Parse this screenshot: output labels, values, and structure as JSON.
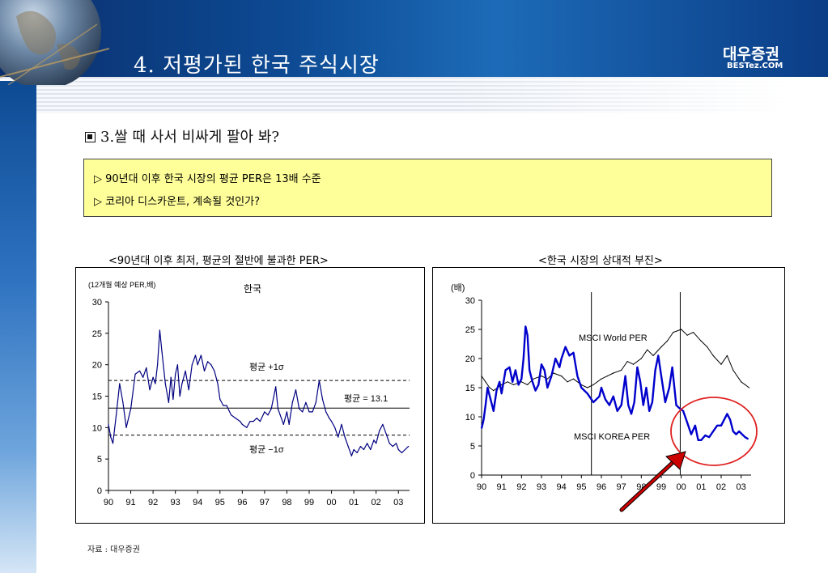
{
  "header": {
    "title": "4. 저평가된 한국 주식시장",
    "logo_main": "대우증권",
    "logo_sub": "BESTez.COM"
  },
  "section": {
    "heading": "3.쌀 때 사서 비싸게 팔아 봐?"
  },
  "notes": [
    "▷ 90년대 이후 한국 시장의 평균 PER은 13배 수준",
    "▷ 코리아 디스카운트, 계속될 것인가?"
  ],
  "colors": {
    "banner": "#0d4a93",
    "note_bg": "#ffff99",
    "korea_line": "#0000cc",
    "world_line": "#000000",
    "highlight_circle": "#e02020",
    "arrow": "#cc0000"
  },
  "chart_data": [
    {
      "type": "line",
      "caption": "<90년대 이후 최저, 평균의 절반에 불과한 PER>",
      "title": "한국",
      "ylabel": "(12개월 예상 PER,배)",
      "ylim": [
        0,
        30
      ],
      "yticks": [
        "0",
        "5",
        "10",
        "15",
        "20",
        "25",
        "30"
      ],
      "xticks": [
        "90",
        "91",
        "92",
        "93",
        "94",
        "95",
        "96",
        "97",
        "98",
        "99",
        "00",
        "01",
        "02",
        "03"
      ],
      "xlim": [
        1990,
        2003.5
      ],
      "reference_lines": [
        {
          "label": "평균 +1σ",
          "value": 17.5,
          "style": "dashed"
        },
        {
          "label": "평균 = 13.1",
          "value": 13.1,
          "style": "solid"
        },
        {
          "label": "평균 −1σ",
          "value": 8.8,
          "style": "dashed"
        }
      ],
      "series": [
        {
          "color": "#000080",
          "points": [
            [
              1990.0,
              10.5
            ],
            [
              1990.1,
              8.5
            ],
            [
              1990.2,
              7.5
            ],
            [
              1990.35,
              12.0
            ],
            [
              1990.5,
              17.0
            ],
            [
              1990.65,
              14.0
            ],
            [
              1990.8,
              10.0
            ],
            [
              1991.0,
              13.0
            ],
            [
              1991.2,
              18.5
            ],
            [
              1991.4,
              19.0
            ],
            [
              1991.55,
              18.0
            ],
            [
              1991.7,
              19.5
            ],
            [
              1991.85,
              16.0
            ],
            [
              1992.0,
              18.0
            ],
            [
              1992.1,
              17.0
            ],
            [
              1992.2,
              20.0
            ],
            [
              1992.3,
              25.5
            ],
            [
              1992.4,
              22.0
            ],
            [
              1992.55,
              17.0
            ],
            [
              1992.7,
              14.0
            ],
            [
              1992.8,
              18.0
            ],
            [
              1992.9,
              14.5
            ],
            [
              1993.0,
              18.5
            ],
            [
              1993.1,
              20.0
            ],
            [
              1993.2,
              15.0
            ],
            [
              1993.3,
              17.0
            ],
            [
              1993.45,
              19.0
            ],
            [
              1993.6,
              16.0
            ],
            [
              1993.75,
              20.0
            ],
            [
              1993.9,
              21.5
            ],
            [
              1994.0,
              20.0
            ],
            [
              1994.15,
              21.5
            ],
            [
              1994.3,
              19.0
            ],
            [
              1994.45,
              20.5
            ],
            [
              1994.6,
              20.0
            ],
            [
              1994.75,
              19.0
            ],
            [
              1994.9,
              17.0
            ],
            [
              1995.0,
              14.5
            ],
            [
              1995.15,
              13.5
            ],
            [
              1995.3,
              13.5
            ],
            [
              1995.5,
              12.0
            ],
            [
              1995.7,
              11.5
            ],
            [
              1995.9,
              11.0
            ],
            [
              1996.0,
              10.5
            ],
            [
              1996.2,
              10.0
            ],
            [
              1996.35,
              11.0
            ],
            [
              1996.5,
              11.0
            ],
            [
              1996.65,
              11.5
            ],
            [
              1996.8,
              11.0
            ],
            [
              1997.0,
              12.5
            ],
            [
              1997.15,
              12.0
            ],
            [
              1997.3,
              13.0
            ],
            [
              1997.5,
              16.5
            ],
            [
              1997.6,
              13.0
            ],
            [
              1997.7,
              12.0
            ],
            [
              1997.85,
              10.5
            ],
            [
              1998.0,
              12.5
            ],
            [
              1998.1,
              10.5
            ],
            [
              1998.25,
              14.0
            ],
            [
              1998.4,
              16.0
            ],
            [
              1998.55,
              13.0
            ],
            [
              1998.7,
              12.5
            ],
            [
              1998.85,
              14.0
            ],
            [
              1999.0,
              12.5
            ],
            [
              1999.15,
              12.5
            ],
            [
              1999.3,
              14.0
            ],
            [
              1999.45,
              17.5
            ],
            [
              1999.6,
              14.5
            ],
            [
              1999.75,
              12.5
            ],
            [
              1999.9,
              11.5
            ],
            [
              2000.0,
              11.0
            ],
            [
              2000.15,
              10.0
            ],
            [
              2000.3,
              8.5
            ],
            [
              2000.45,
              10.5
            ],
            [
              2000.6,
              8.5
            ],
            [
              2000.75,
              7.0
            ],
            [
              2000.9,
              5.5
            ],
            [
              2001.0,
              6.5
            ],
            [
              2001.15,
              6.0
            ],
            [
              2001.3,
              7.0
            ],
            [
              2001.45,
              6.5
            ],
            [
              2001.6,
              7.5
            ],
            [
              2001.75,
              6.5
            ],
            [
              2001.9,
              8.0
            ],
            [
              2002.0,
              7.5
            ],
            [
              2002.15,
              9.5
            ],
            [
              2002.3,
              10.5
            ],
            [
              2002.45,
              9.0
            ],
            [
              2002.6,
              7.5
            ],
            [
              2002.75,
              7.0
            ],
            [
              2002.9,
              7.5
            ],
            [
              2003.0,
              6.5
            ],
            [
              2003.15,
              6.0
            ],
            [
              2003.3,
              6.5
            ],
            [
              2003.45,
              7.0
            ]
          ]
        }
      ]
    },
    {
      "type": "line",
      "caption": "<한국 시장의 상대적 부진>",
      "ylabel": "(배)",
      "ylim": [
        0,
        30
      ],
      "yticks": [
        "0",
        "5",
        "10",
        "15",
        "20",
        "25",
        "30"
      ],
      "xticks": [
        "90",
        "91",
        "92",
        "93",
        "94",
        "95",
        "96",
        "97",
        "98",
        "99",
        "00",
        "01",
        "02",
        "03"
      ],
      "xlim": [
        1990,
        2003.5
      ],
      "vertical_lines": [
        1995.5,
        1999.95
      ],
      "series": [
        {
          "name": "MSCI World PER",
          "color": "#000000",
          "points": [
            [
              1990.0,
              17.0
            ],
            [
              1990.2,
              16.0
            ],
            [
              1990.4,
              15.0
            ],
            [
              1990.6,
              14.5
            ],
            [
              1990.8,
              15.0
            ],
            [
              1991.0,
              15.5
            ],
            [
              1991.3,
              16.0
            ],
            [
              1991.6,
              15.5
            ],
            [
              1992.0,
              16.0
            ],
            [
              1992.3,
              15.5
            ],
            [
              1992.6,
              16.5
            ],
            [
              1993.0,
              17.0
            ],
            [
              1993.3,
              16.5
            ],
            [
              1993.6,
              17.5
            ],
            [
              1994.0,
              17.0
            ],
            [
              1994.3,
              16.0
            ],
            [
              1994.6,
              16.5
            ],
            [
              1995.0,
              15.5
            ],
            [
              1995.3,
              15.0
            ],
            [
              1995.6,
              15.5
            ],
            [
              1996.0,
              16.5
            ],
            [
              1996.3,
              17.0
            ],
            [
              1996.6,
              17.5
            ],
            [
              1997.0,
              18.0
            ],
            [
              1997.3,
              19.5
            ],
            [
              1997.6,
              19.0
            ],
            [
              1998.0,
              20.0
            ],
            [
              1998.3,
              21.5
            ],
            [
              1998.6,
              20.5
            ],
            [
              1999.0,
              22.0
            ],
            [
              1999.3,
              23.0
            ],
            [
              1999.6,
              24.5
            ],
            [
              2000.0,
              25.0
            ],
            [
              2000.3,
              24.0
            ],
            [
              2000.6,
              24.5
            ],
            [
              2001.0,
              23.0
            ],
            [
              2001.3,
              22.0
            ],
            [
              2001.6,
              20.5
            ],
            [
              2002.0,
              19.0
            ],
            [
              2002.3,
              20.5
            ],
            [
              2002.6,
              18.0
            ],
            [
              2003.0,
              16.0
            ],
            [
              2003.2,
              15.5
            ],
            [
              2003.4,
              15.0
            ]
          ]
        },
        {
          "name": "MSCI KOREA PER",
          "color": "#0000cc",
          "points": [
            [
              1990.0,
              8.0
            ],
            [
              1990.1,
              9.5
            ],
            [
              1990.2,
              12.0
            ],
            [
              1990.3,
              15.0
            ],
            [
              1990.45,
              13.0
            ],
            [
              1990.6,
              11.0
            ],
            [
              1990.75,
              14.5
            ],
            [
              1990.9,
              16.0
            ],
            [
              1991.0,
              14.0
            ],
            [
              1991.2,
              18.0
            ],
            [
              1991.4,
              18.5
            ],
            [
              1991.55,
              16.0
            ],
            [
              1991.7,
              18.0
            ],
            [
              1991.85,
              15.5
            ],
            [
              1992.0,
              16.5
            ],
            [
              1992.1,
              20.0
            ],
            [
              1992.2,
              25.5
            ],
            [
              1992.3,
              24.0
            ],
            [
              1992.4,
              18.0
            ],
            [
              1992.55,
              16.0
            ],
            [
              1992.7,
              14.5
            ],
            [
              1992.85,
              15.5
            ],
            [
              1993.0,
              19.0
            ],
            [
              1993.15,
              18.0
            ],
            [
              1993.3,
              15.0
            ],
            [
              1993.5,
              17.0
            ],
            [
              1993.7,
              20.0
            ],
            [
              1993.9,
              18.5
            ],
            [
              1994.0,
              20.0
            ],
            [
              1994.2,
              22.0
            ],
            [
              1994.4,
              20.5
            ],
            [
              1994.6,
              21.0
            ],
            [
              1994.8,
              17.0
            ],
            [
              1995.0,
              15.0
            ],
            [
              1995.3,
              14.0
            ],
            [
              1995.6,
              12.5
            ],
            [
              1995.9,
              13.5
            ],
            [
              1996.0,
              15.0
            ],
            [
              1996.2,
              13.0
            ],
            [
              1996.4,
              12.0
            ],
            [
              1996.6,
              13.5
            ],
            [
              1996.8,
              11.0
            ],
            [
              1997.0,
              12.0
            ],
            [
              1997.2,
              17.0
            ],
            [
              1997.35,
              12.0
            ],
            [
              1997.5,
              10.5
            ],
            [
              1997.65,
              12.5
            ],
            [
              1997.8,
              18.5
            ],
            [
              1997.95,
              16.0
            ],
            [
              1998.1,
              12.0
            ],
            [
              1998.25,
              15.0
            ],
            [
              1998.4,
              11.0
            ],
            [
              1998.55,
              12.5
            ],
            [
              1998.7,
              18.0
            ],
            [
              1998.85,
              20.5
            ],
            [
              1999.0,
              17.0
            ],
            [
              1999.2,
              12.5
            ],
            [
              1999.4,
              15.0
            ],
            [
              1999.55,
              18.5
            ],
            [
              1999.75,
              12.0
            ],
            [
              1999.9,
              11.5
            ],
            [
              2000.1,
              11.0
            ],
            [
              2000.3,
              9.0
            ],
            [
              2000.5,
              7.0
            ],
            [
              2000.7,
              8.5
            ],
            [
              2000.85,
              6.0
            ],
            [
              2001.0,
              6.0
            ],
            [
              2001.2,
              6.8
            ],
            [
              2001.4,
              6.5
            ],
            [
              2001.6,
              7.5
            ],
            [
              2001.8,
              8.5
            ],
            [
              2002.0,
              8.5
            ],
            [
              2002.15,
              9.5
            ],
            [
              2002.3,
              10.5
            ],
            [
              2002.45,
              9.5
            ],
            [
              2002.6,
              7.5
            ],
            [
              2002.75,
              7.0
            ],
            [
              2002.9,
              7.5
            ],
            [
              2003.05,
              7.0
            ],
            [
              2003.2,
              6.5
            ],
            [
              2003.35,
              6.2
            ]
          ]
        }
      ]
    }
  ],
  "source": "자료 : 대우증권"
}
